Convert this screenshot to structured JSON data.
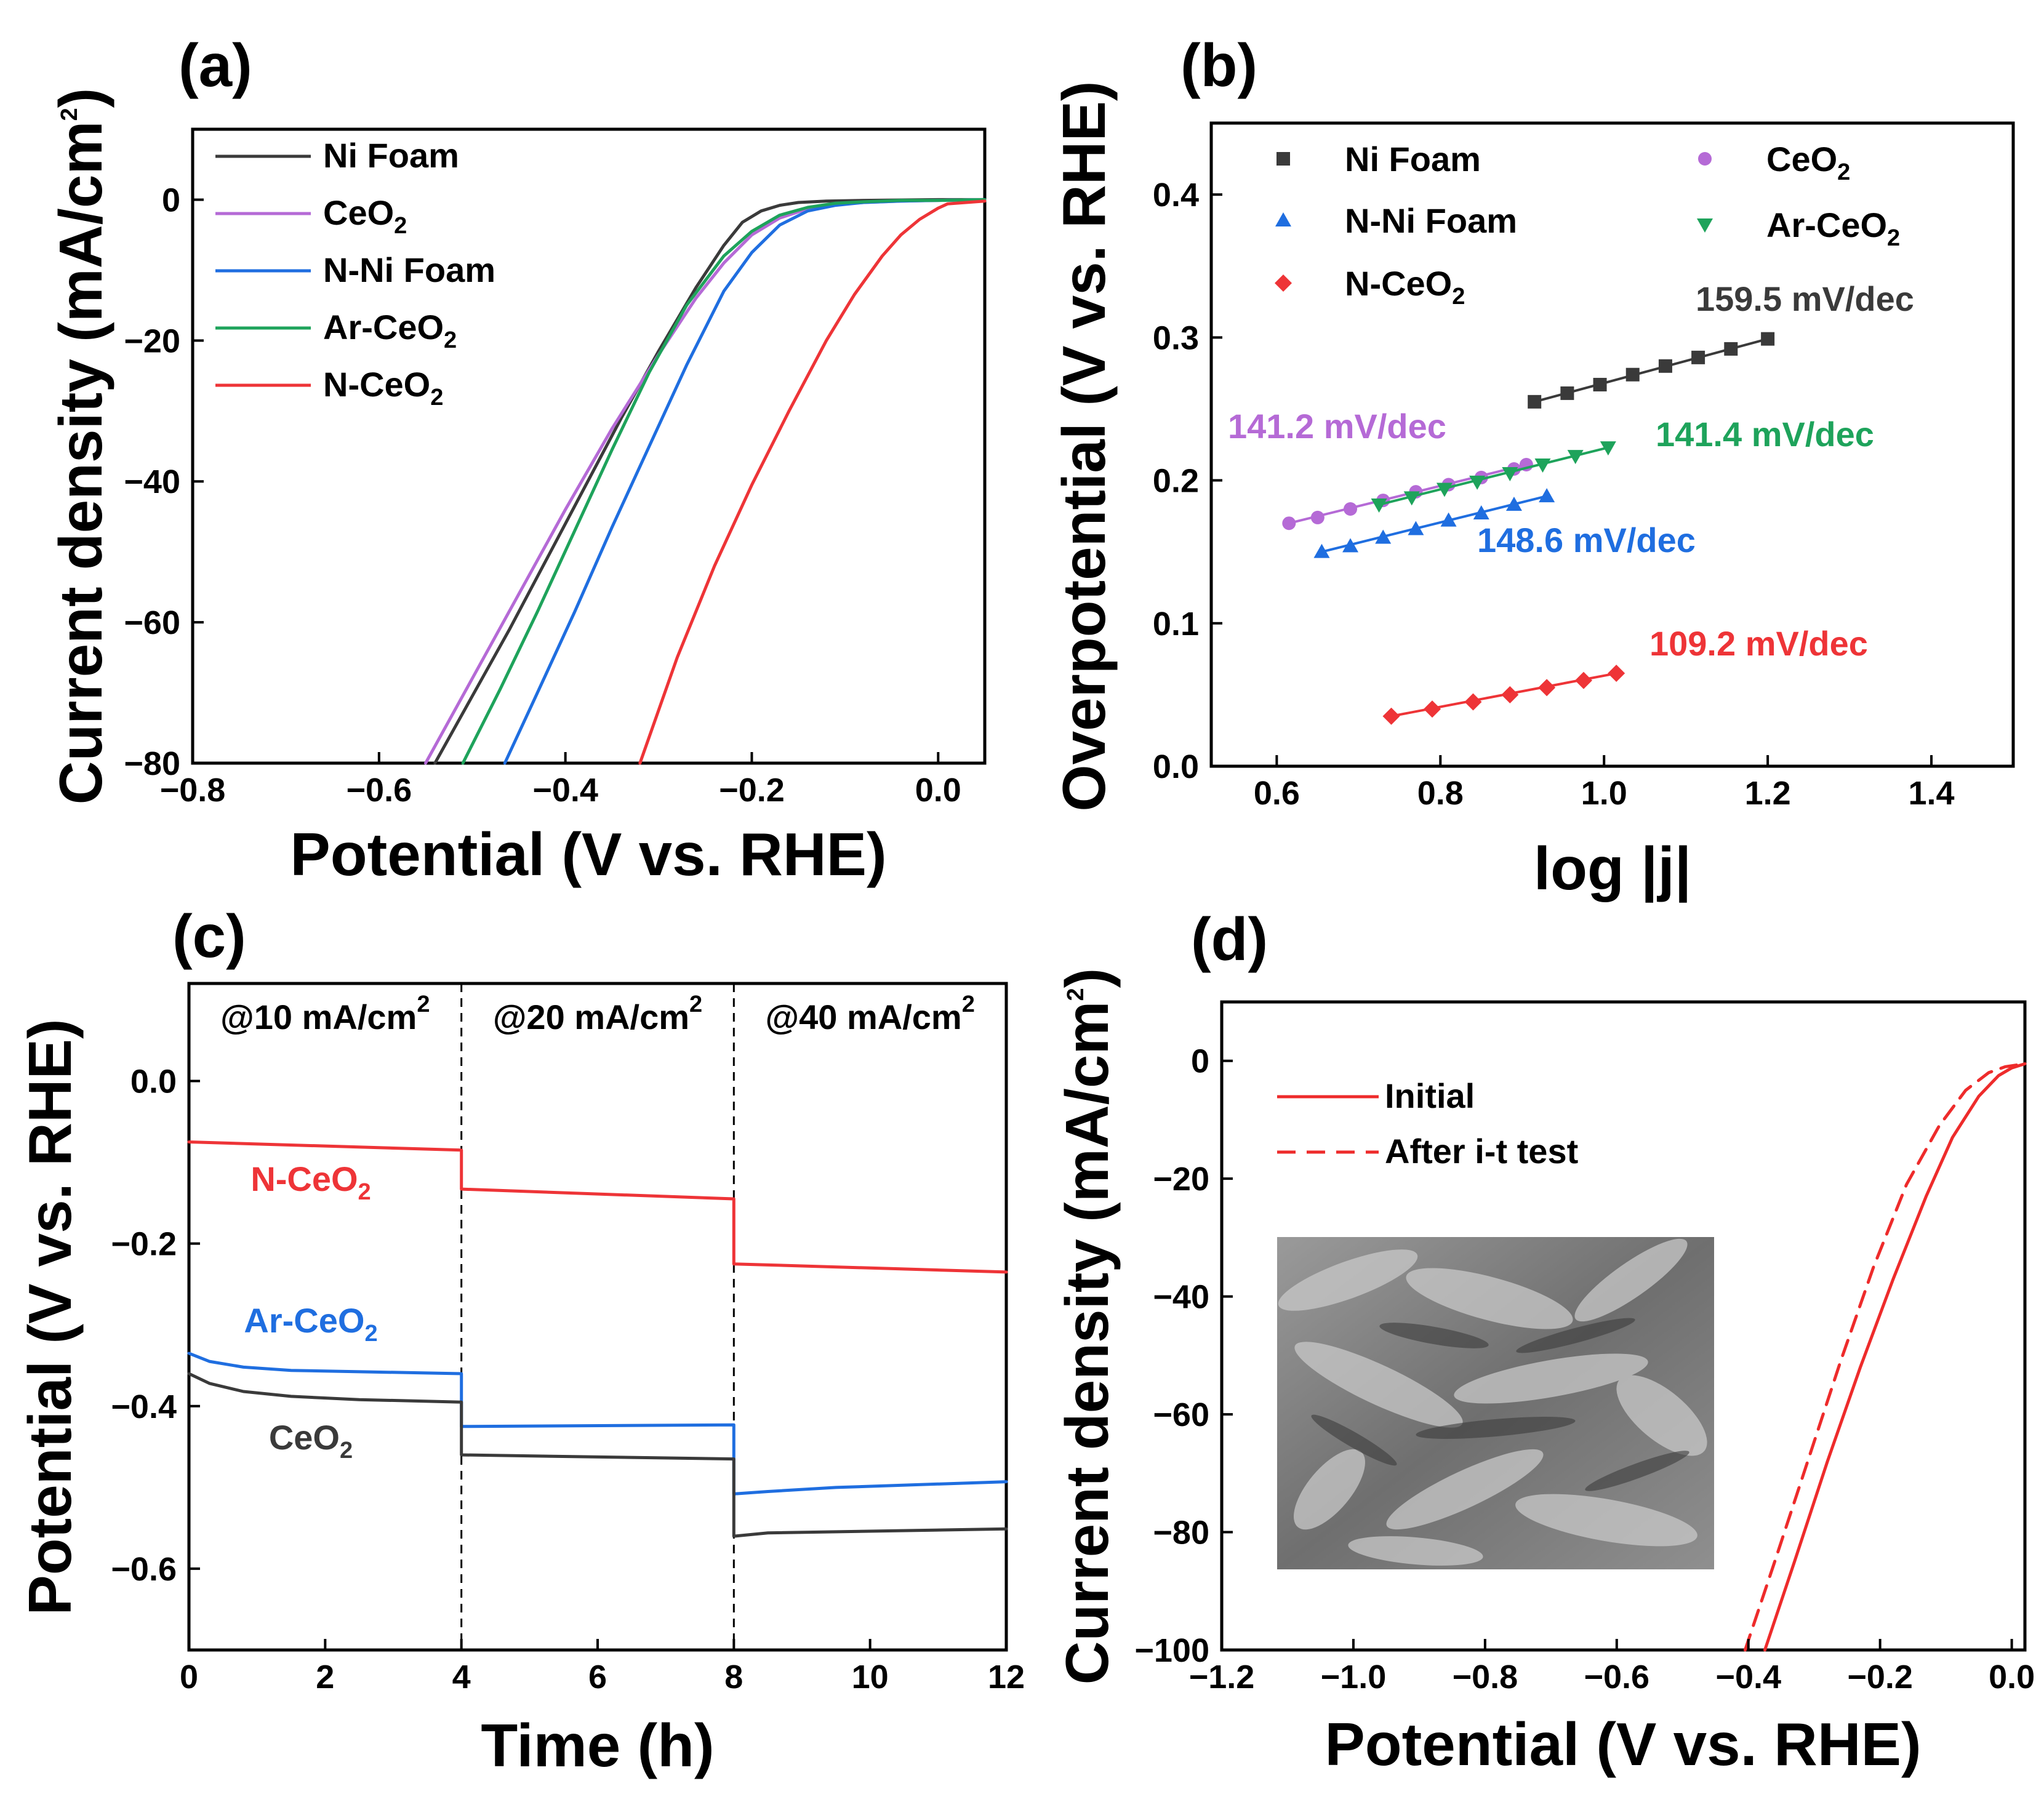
{
  "colors": {
    "ni_foam": "#3a3a3a",
    "ceo2": "#b56ad6",
    "n_ni_foam": "#1f6ee0",
    "ar_ceo2": "#1ea35b",
    "n_ceo2": "#ee3437",
    "n_ceo2_d": "#ee2b2b",
    "sem_bg": "#8c8c8c"
  },
  "chart_data": [
    {
      "id": "a",
      "panel_label": "(a)",
      "type": "line",
      "xlabel": "Potential (V vs. RHE)",
      "ylabel_main": "Current density (mA/cm",
      "ylabel_sup": "2",
      "ylabel_tail": ")",
      "xlim": [
        -0.8,
        0.05
      ],
      "ylim": [
        -80,
        10
      ],
      "xticks": [
        -0.8,
        -0.6,
        -0.4,
        -0.2,
        0.0
      ],
      "xtick_labels": [
        "−0.8",
        "−0.6",
        "−0.4",
        "−0.2",
        "0.0"
      ],
      "yticks": [
        0,
        -20,
        -40,
        -60,
        -80
      ],
      "ytick_labels": [
        "0",
        "−20",
        "−40",
        "−60",
        "−80"
      ],
      "legend": [
        {
          "key": "ni_foam",
          "label": "Ni Foam",
          "sub": ""
        },
        {
          "key": "ceo2",
          "label": "CeO",
          "sub": "2"
        },
        {
          "key": "n_ni_foam",
          "label": "N-Ni Foam",
          "sub": ""
        },
        {
          "key": "ar_ceo2",
          "label": "Ar-CeO",
          "sub": "2"
        },
        {
          "key": "n_ceo2",
          "label": "N-CeO",
          "sub": "2"
        }
      ],
      "series": [
        {
          "key": "ni_foam",
          "x": [
            -0.54,
            -0.5,
            -0.46,
            -0.42,
            -0.38,
            -0.34,
            -0.3,
            -0.26,
            -0.23,
            -0.21,
            -0.19,
            -0.17,
            -0.15,
            -0.12,
            -0.08,
            0.0,
            0.05
          ],
          "y": [
            -80,
            -70.5,
            -61,
            -51,
            -41,
            -31,
            -21.5,
            -12.5,
            -6.5,
            -3.2,
            -1.6,
            -0.8,
            -0.4,
            -0.2,
            -0.1,
            0,
            0
          ]
        },
        {
          "key": "ceo2",
          "x": [
            -0.55,
            -0.5,
            -0.45,
            -0.4,
            -0.35,
            -0.3,
            -0.26,
            -0.23,
            -0.2,
            -0.17,
            -0.14,
            -0.11,
            -0.08,
            -0.04,
            0.0,
            0.05
          ],
          "y": [
            -80,
            -68,
            -56,
            -44,
            -32.5,
            -22,
            -14,
            -9,
            -5,
            -2.6,
            -1.3,
            -0.7,
            -0.4,
            -0.2,
            -0.1,
            0
          ]
        },
        {
          "key": "n_ni_foam",
          "x": [
            -0.465,
            -0.43,
            -0.39,
            -0.35,
            -0.31,
            -0.27,
            -0.23,
            -0.2,
            -0.17,
            -0.14,
            -0.11,
            -0.08,
            -0.04,
            0.0,
            0.05
          ],
          "y": [
            -80,
            -70,
            -58.5,
            -46.5,
            -35,
            -23.5,
            -13,
            -7.5,
            -3.6,
            -1.6,
            -0.8,
            -0.4,
            -0.2,
            -0.1,
            0
          ]
        },
        {
          "key": "ar_ceo2",
          "x": [
            -0.51,
            -0.47,
            -0.43,
            -0.39,
            -0.35,
            -0.31,
            -0.27,
            -0.23,
            -0.2,
            -0.17,
            -0.14,
            -0.11,
            -0.08,
            -0.04,
            0.0,
            0.05
          ],
          "y": [
            -80,
            -69.5,
            -58.5,
            -47,
            -35.5,
            -24.5,
            -15,
            -8,
            -4.5,
            -2.2,
            -1.1,
            -0.5,
            -0.3,
            -0.1,
            -0.1,
            0
          ]
        },
        {
          "key": "n_ceo2",
          "x": [
            -0.32,
            -0.28,
            -0.24,
            -0.2,
            -0.16,
            -0.12,
            -0.09,
            -0.06,
            -0.04,
            -0.02,
            0.0,
            0.01,
            0.05
          ],
          "y": [
            -80,
            -65,
            -52,
            -40.5,
            -30,
            -20,
            -13.5,
            -8,
            -5,
            -2.8,
            -1.2,
            -0.6,
            -0.2
          ]
        }
      ]
    },
    {
      "id": "b",
      "panel_label": "(b)",
      "type": "scatter",
      "xlabel": "log |j|",
      "ylabel": "Overpotential (V vs. RHE)",
      "xlim": [
        0.52,
        1.5
      ],
      "ylim": [
        0.0,
        0.45
      ],
      "xticks": [
        0.6,
        0.8,
        1.0,
        1.2,
        1.4
      ],
      "xtick_labels": [
        "0.6",
        "0.8",
        "1.0",
        "1.2",
        "1.4"
      ],
      "yticks": [
        0.0,
        0.1,
        0.2,
        0.3,
        0.4
      ],
      "ytick_labels": [
        "0.0",
        "0.1",
        "0.2",
        "0.3",
        "0.4"
      ],
      "legend": [
        {
          "key": "ni_foam",
          "label": "Ni Foam",
          "sub": "",
          "marker": "square"
        },
        {
          "key": "ceo2",
          "label": "CeO",
          "sub": "2",
          "marker": "circle"
        },
        {
          "key": "n_ni_foam",
          "label": "N-Ni Foam",
          "sub": "",
          "marker": "triangle-up"
        },
        {
          "key": "ar_ceo2",
          "label": "Ar-CeO",
          "sub": "2",
          "marker": "triangle-down"
        },
        {
          "key": "n_ceo2",
          "label": "N-CeO",
          "sub": "2",
          "marker": "diamond"
        }
      ],
      "series": [
        {
          "key": "ni_foam",
          "marker": "square",
          "tafel_label": "159.5 mV/dec",
          "x": [
            0.915,
            0.955,
            0.995,
            1.035,
            1.075,
            1.115,
            1.155,
            1.2
          ],
          "y": [
            0.255,
            0.261,
            0.267,
            0.274,
            0.28,
            0.286,
            0.292,
            0.299
          ]
        },
        {
          "key": "ceo2",
          "marker": "circle",
          "tafel_label": "141.2 mV/dec",
          "x": [
            0.615,
            0.65,
            0.69,
            0.73,
            0.77,
            0.81,
            0.85,
            0.89,
            0.905
          ],
          "y": [
            0.17,
            0.174,
            0.18,
            0.186,
            0.192,
            0.197,
            0.202,
            0.208,
            0.211
          ]
        },
        {
          "key": "n_ni_foam",
          "marker": "triangle-up",
          "tafel_label": "148.6 mV/dec",
          "x": [
            0.655,
            0.69,
            0.73,
            0.77,
            0.81,
            0.85,
            0.89,
            0.93
          ],
          "y": [
            0.15,
            0.154,
            0.16,
            0.166,
            0.172,
            0.177,
            0.183,
            0.189
          ]
        },
        {
          "key": "ar_ceo2",
          "marker": "triangle-down",
          "tafel_label": "141.4 mV/dec",
          "x": [
            0.725,
            0.765,
            0.805,
            0.845,
            0.885,
            0.925,
            0.965,
            1.005
          ],
          "y": [
            0.183,
            0.188,
            0.194,
            0.199,
            0.205,
            0.211,
            0.217,
            0.223
          ]
        },
        {
          "key": "n_ceo2",
          "marker": "diamond",
          "tafel_label": "109.2 mV/dec",
          "x": [
            0.74,
            0.79,
            0.84,
            0.885,
            0.93,
            0.975,
            1.015
          ],
          "y": [
            0.035,
            0.04,
            0.045,
            0.05,
            0.055,
            0.06,
            0.065
          ]
        }
      ]
    },
    {
      "id": "c",
      "panel_label": "(c)",
      "type": "line",
      "xlabel": "Time (h)",
      "ylabel": "Potential (V vs. RHE)",
      "xlim": [
        0,
        12
      ],
      "ylim": [
        -0.7,
        0.12
      ],
      "xticks": [
        0,
        2,
        4,
        6,
        8,
        10,
        12
      ],
      "xtick_labels": [
        "0",
        "2",
        "4",
        "6",
        "8",
        "10",
        "12"
      ],
      "yticks": [
        0.0,
        -0.2,
        -0.4,
        -0.6
      ],
      "ytick_labels": [
        "0.0",
        "−0.2",
        "−0.4",
        "−0.6"
      ],
      "dividers": [
        4,
        8
      ],
      "segment_labels": [
        {
          "text": "@10 mA/cm",
          "sup": "2"
        },
        {
          "text": "@20 mA/cm",
          "sup": "2"
        },
        {
          "text": "@40 mA/cm",
          "sup": "2"
        }
      ],
      "series_labels": [
        {
          "key": "n_ceo2",
          "text": "N-CeO",
          "sub": "2"
        },
        {
          "key": "n_ni_foam",
          "text": "Ar-CeO",
          "sub": "2"
        },
        {
          "key": "ni_foam",
          "text": "CeO",
          "sub": "2"
        }
      ],
      "series": [
        {
          "key": "n_ceo2",
          "x": [
            0,
            4,
            4,
            8,
            8,
            12
          ],
          "y": [
            -0.075,
            -0.085,
            -0.133,
            -0.145,
            -0.225,
            -0.235
          ]
        },
        {
          "key": "n_ni_foam",
          "x": [
            0,
            0.3,
            0.8,
            1.5,
            4,
            4,
            8,
            8,
            8.5,
            9.5,
            12
          ],
          "y": [
            -0.335,
            -0.345,
            -0.352,
            -0.356,
            -0.36,
            -0.425,
            -0.423,
            -0.508,
            -0.505,
            -0.5,
            -0.493
          ]
        },
        {
          "key": "ni_foam",
          "x": [
            0,
            0.3,
            0.8,
            1.5,
            2.5,
            4,
            4,
            8,
            8,
            8.5,
            12
          ],
          "y": [
            -0.36,
            -0.372,
            -0.382,
            -0.388,
            -0.392,
            -0.395,
            -0.46,
            -0.465,
            -0.56,
            -0.556,
            -0.551
          ]
        }
      ]
    },
    {
      "id": "d",
      "panel_label": "(d)",
      "type": "line",
      "xlabel": "Potential (V vs. RHE)",
      "ylabel_main": "Current density (mA/cm",
      "ylabel_sup": "2",
      "ylabel_tail": ")",
      "xlim": [
        -1.2,
        0.02
      ],
      "ylim": [
        -100,
        10
      ],
      "xticks": [
        -1.2,
        -1.0,
        -0.8,
        -0.6,
        -0.4,
        -0.2,
        0.0
      ],
      "xtick_labels": [
        "−1.2",
        "−1.0",
        "−0.8",
        "−0.6",
        "−0.4",
        "−0.2",
        "0.0"
      ],
      "yticks": [
        0,
        -20,
        -40,
        -60,
        -80,
        -100
      ],
      "ytick_labels": [
        "0",
        "−20",
        "−40",
        "−60",
        "−80",
        "−100"
      ],
      "legend": [
        {
          "key": "initial",
          "label": "Initial",
          "dash": "solid"
        },
        {
          "key": "after",
          "label": "After i-t test",
          "dash": "dashed"
        }
      ],
      "inset": "SEM micrograph",
      "series": [
        {
          "key": "initial",
          "x": [
            -0.375,
            -0.33,
            -0.28,
            -0.23,
            -0.18,
            -0.13,
            -0.09,
            -0.05,
            -0.02,
            0.0,
            0.02
          ],
          "y": [
            -100,
            -85,
            -68,
            -52,
            -37,
            -23,
            -13,
            -6,
            -2.5,
            -1.2,
            -0.5
          ]
        },
        {
          "key": "after",
          "x": [
            -0.405,
            -0.36,
            -0.31,
            -0.26,
            -0.21,
            -0.16,
            -0.11,
            -0.07,
            -0.035,
            -0.01,
            0.02
          ],
          "y": [
            -100,
            -85,
            -68,
            -51,
            -35,
            -21,
            -11,
            -5,
            -2,
            -1,
            -0.5
          ]
        }
      ]
    }
  ]
}
